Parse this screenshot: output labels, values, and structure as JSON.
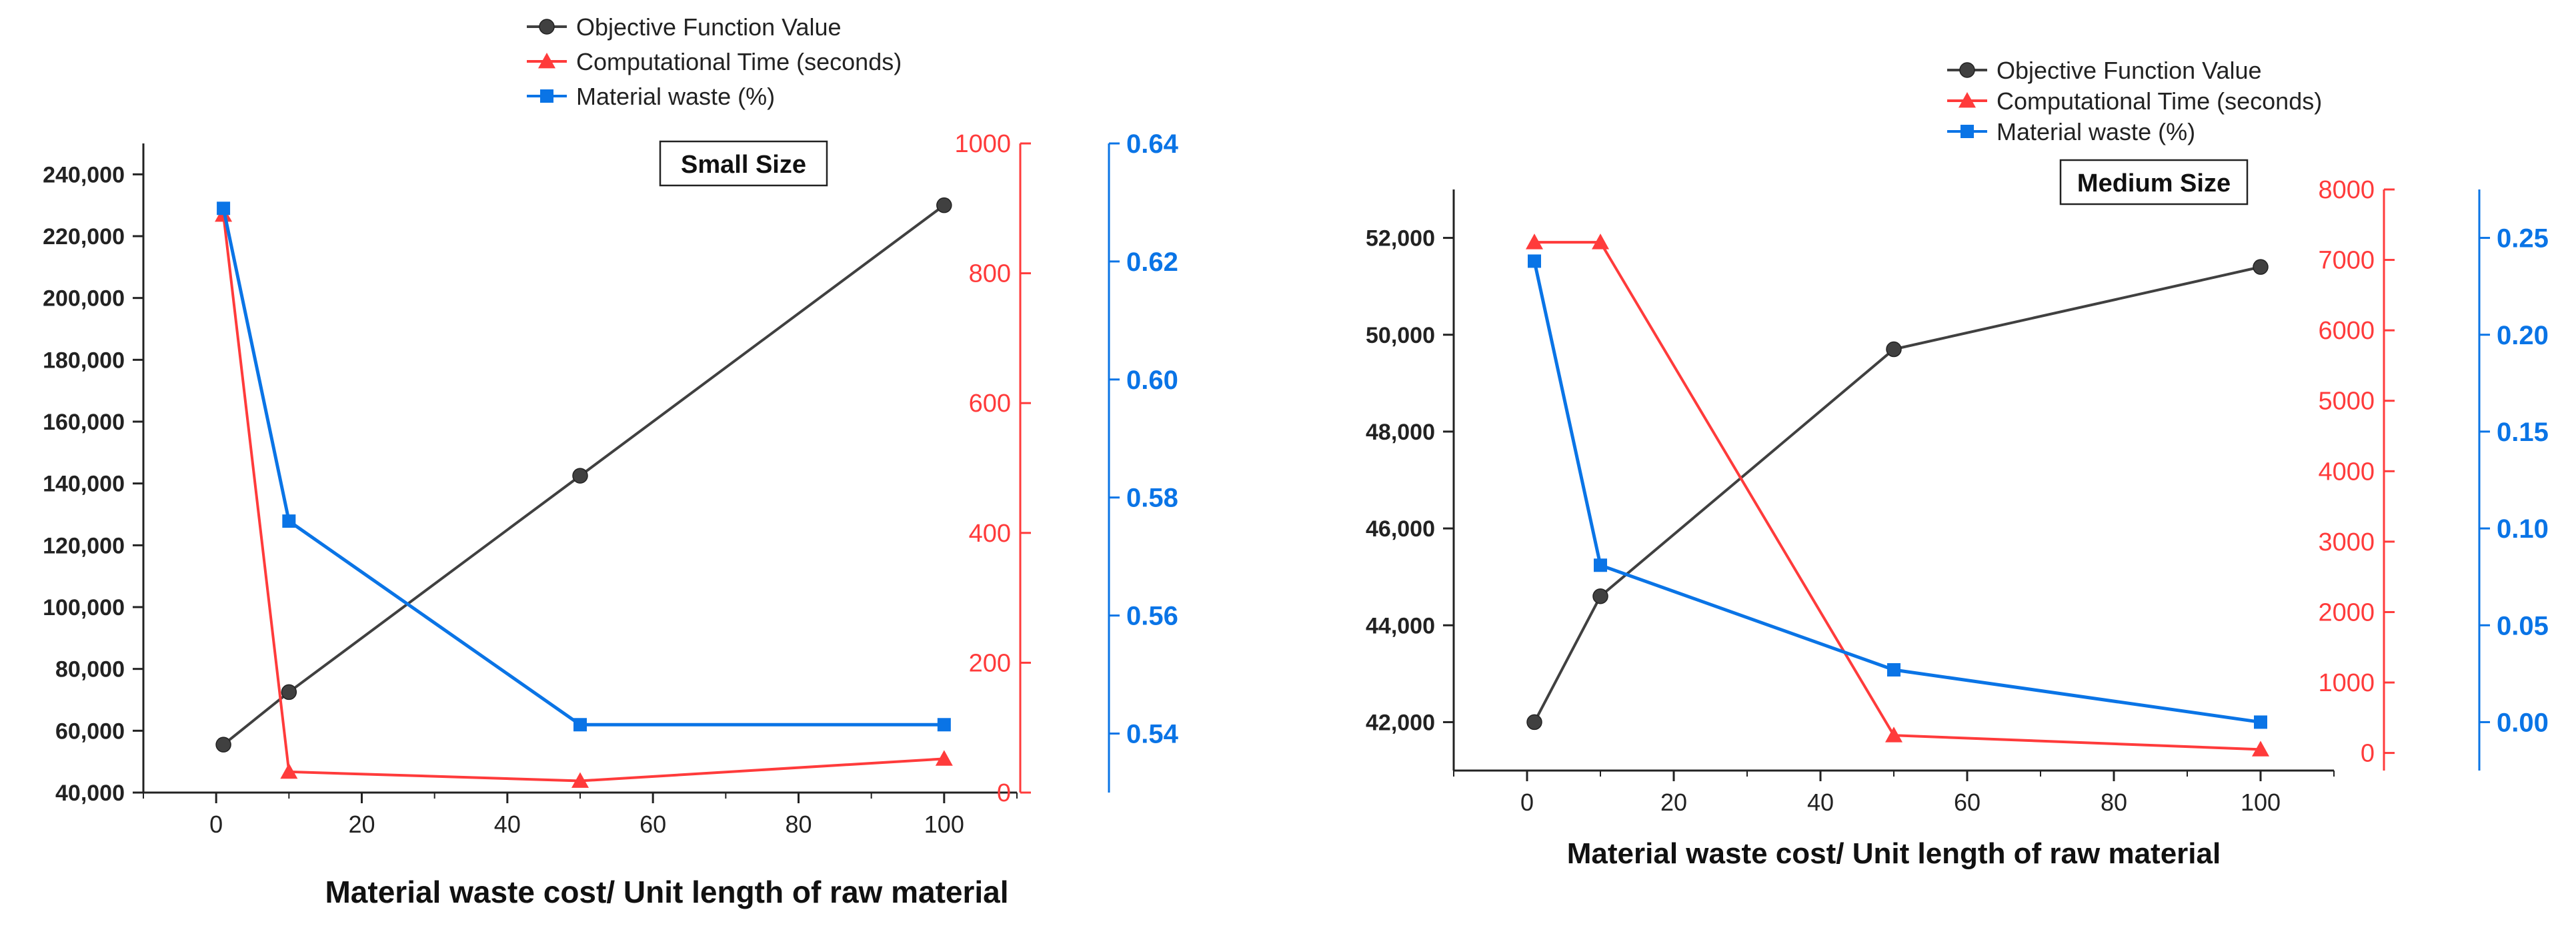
{
  "chart_data": [
    {
      "type": "line",
      "title": "Small Size",
      "xlabel": "Material waste cost/ Unit length of raw material",
      "xlim": [
        -10,
        110
      ],
      "xticks": [
        0,
        20,
        40,
        60,
        80,
        100
      ],
      "x": [
        1,
        10,
        50,
        100
      ],
      "legend": [
        "Objective Function Value",
        "Computational Time (seconds)",
        "Material waste (%)"
      ],
      "series": [
        {
          "name": "Objective Function Value",
          "axis": "y1",
          "color": "#404040",
          "marker": "circle",
          "values": [
            55500,
            72500,
            142500,
            230000
          ]
        },
        {
          "name": "Computational Time (seconds)",
          "axis": "y2",
          "color": "#ff3b3b",
          "marker": "triangle",
          "values": [
            890,
            32,
            18,
            52
          ]
        },
        {
          "name": "Material waste (%)",
          "axis": "y3",
          "color": "#0a74e6",
          "marker": "square",
          "values": [
            0.629,
            0.576,
            0.5415,
            0.5415
          ]
        }
      ],
      "y1": {
        "lim": [
          40000,
          250000
        ],
        "ticks": [
          40000,
          60000,
          80000,
          100000,
          120000,
          140000,
          160000,
          180000,
          200000,
          220000,
          240000
        ],
        "labels": [
          "40,000",
          "60,000",
          "80,000",
          "100,000",
          "120,000",
          "140,000",
          "160,000",
          "180,000",
          "200,000",
          "220,000",
          "240,000"
        ]
      },
      "y2": {
        "lim": [
          0,
          1000
        ],
        "ticks": [
          0,
          200,
          400,
          600,
          800,
          1000
        ],
        "labels": [
          "0",
          "200",
          "400",
          "600",
          "800",
          "1000"
        ]
      },
      "y3": {
        "lim": [
          0.53,
          0.64
        ],
        "ticks": [
          0.54,
          0.56,
          0.58,
          0.6,
          0.62,
          0.64
        ],
        "labels": [
          "0.54",
          "0.56",
          "0.58",
          "0.60",
          "0.62",
          "0.64"
        ]
      }
    },
    {
      "type": "line",
      "title": "Medium Size",
      "xlabel": "Material waste cost/ Unit length of raw material",
      "xlim": [
        -10,
        110
      ],
      "xticks": [
        0,
        20,
        40,
        60,
        80,
        100
      ],
      "x": [
        1,
        10,
        50,
        100
      ],
      "legend": [
        "Objective Function Value",
        "Computational Time (seconds)",
        "Material waste (%)"
      ],
      "series": [
        {
          "name": "Objective Function Value",
          "axis": "y1",
          "color": "#404040",
          "marker": "circle",
          "values": [
            42000,
            44600,
            49700,
            51400
          ]
        },
        {
          "name": "Computational Time (seconds)",
          "axis": "y2",
          "color": "#ff3b3b",
          "marker": "triangle",
          "values": [
            7250,
            7250,
            250,
            50
          ]
        },
        {
          "name": "Material waste (%)",
          "axis": "y3",
          "color": "#0a74e6",
          "marker": "square",
          "values": [
            0.238,
            0.081,
            0.027,
            0.0
          ]
        }
      ],
      "y1": {
        "lim": [
          41000,
          53000
        ],
        "ticks": [
          42000,
          44000,
          46000,
          48000,
          50000,
          52000
        ],
        "labels": [
          "42,000",
          "44,000",
          "46,000",
          "48,000",
          "50,000",
          "52,000"
        ]
      },
      "y2": {
        "lim": [
          -250,
          8000
        ],
        "ticks": [
          0,
          1000,
          2000,
          3000,
          4000,
          5000,
          6000,
          7000,
          8000
        ],
        "labels": [
          "0",
          "1000",
          "2000",
          "3000",
          "4000",
          "5000",
          "6000",
          "7000",
          "8000"
        ]
      },
      "y3": {
        "lim": [
          -0.025,
          0.275
        ],
        "ticks": [
          0.0,
          0.05,
          0.1,
          0.15,
          0.2,
          0.25
        ],
        "labels": [
          "0.00",
          "0.05",
          "0.10",
          "0.15",
          "0.20",
          "0.25"
        ]
      }
    }
  ]
}
